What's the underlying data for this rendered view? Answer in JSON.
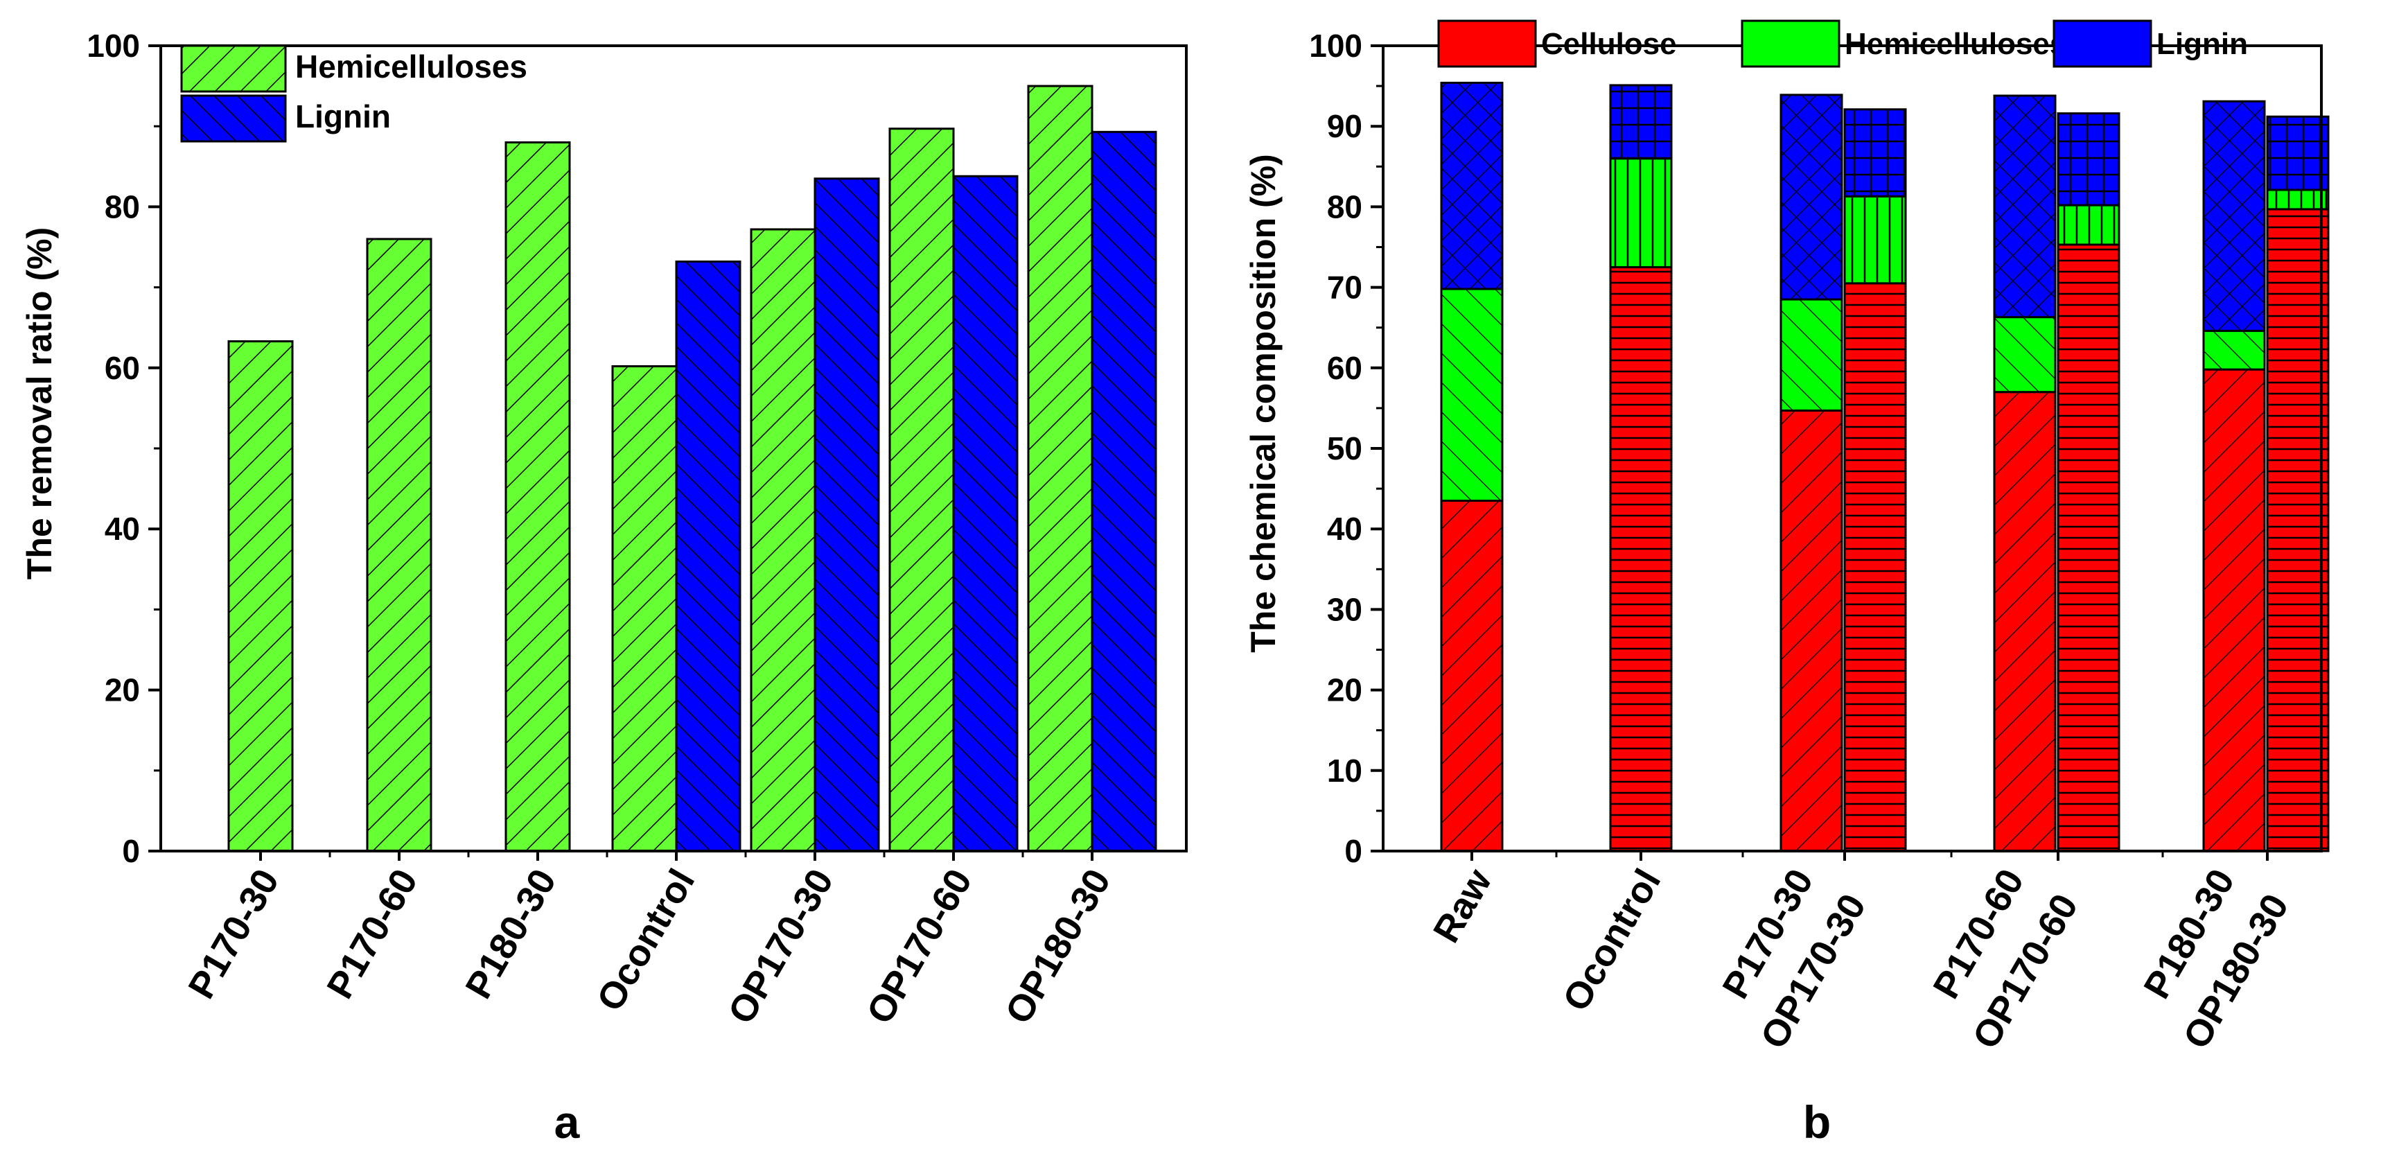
{
  "colors": {
    "cellulose": "#ff0000",
    "hemicelluloses": "#00ff00",
    "hemicelluloses_a": "#66ff33",
    "lignin": "#0000ff",
    "axis": "#000000"
  },
  "chart_data": [
    {
      "id": "a",
      "type": "bar",
      "panel_label": "a",
      "title": "",
      "xlabel": "",
      "ylabel": "The removal ratio (%)",
      "ylim": [
        0,
        100
      ],
      "yticks": [
        0,
        20,
        40,
        60,
        80,
        100
      ],
      "categories": [
        "P170-30",
        "P170-60",
        "P180-30",
        "Ocontrol",
        "OP170-30",
        "OP170-60",
        "OP180-30"
      ],
      "series": [
        {
          "name": "Hemicelluloses",
          "color": "#66ff33",
          "values": [
            63.3,
            76.0,
            88.0,
            60.2,
            77.2,
            89.7,
            95.0
          ]
        },
        {
          "name": "Lignin",
          "color": "#0000ff",
          "values": [
            null,
            null,
            null,
            73.2,
            83.5,
            83.8,
            89.3
          ]
        }
      ],
      "legend": {
        "position": "top-left",
        "entries": [
          "Hemicelluloses",
          "Lignin"
        ]
      }
    },
    {
      "id": "b",
      "type": "bar",
      "stacked": true,
      "panel_label": "b",
      "title": "",
      "xlabel": "",
      "ylabel": "The chemical composition (%)",
      "ylim": [
        0,
        100
      ],
      "yticks": [
        0,
        10,
        20,
        30,
        40,
        50,
        60,
        70,
        80,
        90,
        100
      ],
      "categories": [
        "Raw",
        "Ocontrol",
        "P170-30",
        "OP170-30",
        "P170-60",
        "OP170-60",
        "P180-30",
        "OP180-30"
      ],
      "series": [
        {
          "name": "Cellulose",
          "color": "#ff0000",
          "values": [
            43.5,
            72.5,
            54.7,
            70.5,
            57.0,
            75.3,
            59.8,
            79.7
          ]
        },
        {
          "name": "Hemicelluloses",
          "color": "#00ff00",
          "values": [
            26.3,
            13.5,
            13.8,
            10.8,
            9.3,
            4.9,
            4.8,
            2.4
          ]
        },
        {
          "name": "Lignin",
          "color": "#0000ff",
          "values": [
            25.6,
            9.1,
            25.4,
            10.8,
            27.5,
            11.4,
            28.5,
            9.1
          ]
        }
      ],
      "legend": {
        "position": "top",
        "entries": [
          "Cellulose",
          "Hemicelluloses",
          "Lignin"
        ]
      }
    }
  ]
}
